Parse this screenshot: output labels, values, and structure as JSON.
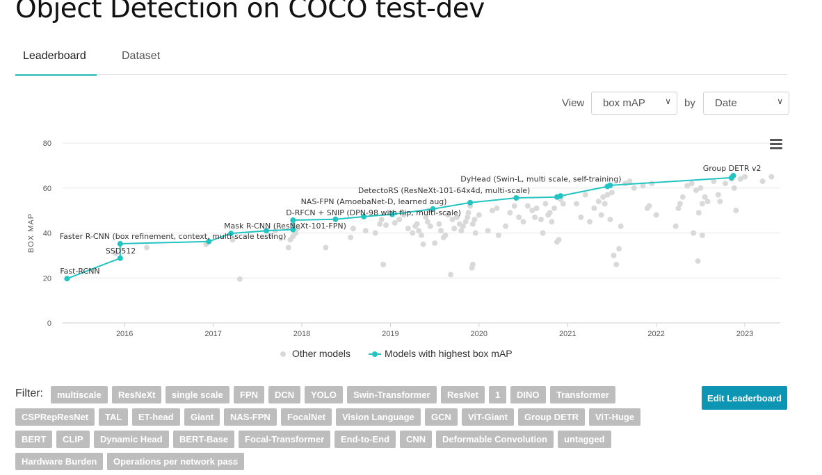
{
  "page": {
    "title": "Object Detection on COCO test-dev"
  },
  "tabs": [
    {
      "label": "Leaderboard"
    },
    {
      "label": "Dataset"
    }
  ],
  "controls": {
    "view_label": "View",
    "view_value": "box mAP",
    "by_label": "by",
    "by_value": "Date"
  },
  "chart_data": {
    "type": "scatter",
    "ylabel": "BOX MAP",
    "xlabel": "",
    "ylim": [
      0,
      80
    ],
    "xlim": [
      2015.3,
      2023.4
    ],
    "yticks": [
      0,
      20,
      40,
      60,
      80
    ],
    "xticks": [
      2016,
      2017,
      2018,
      2019,
      2020,
      2021,
      2022,
      2023
    ],
    "grid": "horizontal",
    "legend_position": "bottom",
    "colors": {
      "other": "#d9d9d9",
      "best": "#21c4c2"
    },
    "series": [
      {
        "name": "Other models",
        "points": [
          [
            2015.9,
            31
          ],
          [
            2016.25,
            33.5
          ],
          [
            2016.92,
            35
          ],
          [
            2016.95,
            36.5
          ],
          [
            2017.22,
            37
          ],
          [
            2017.3,
            19.5
          ],
          [
            2017.65,
            39
          ],
          [
            2017.7,
            41
          ],
          [
            2017.85,
            33.5
          ],
          [
            2017.87,
            37
          ],
          [
            2017.9,
            38.5
          ],
          [
            2017.93,
            40
          ],
          [
            2017.95,
            42
          ],
          [
            2017.9,
            44
          ],
          [
            2018.27,
            33.5
          ],
          [
            2018.55,
            38
          ],
          [
            2018.58,
            42
          ],
          [
            2018.72,
            41
          ],
          [
            2018.83,
            40
          ],
          [
            2018.88,
            44
          ],
          [
            2018.92,
            26
          ],
          [
            2018.9,
            46
          ],
          [
            2018.95,
            43.5
          ],
          [
            2019.05,
            44.5
          ],
          [
            2019.1,
            46
          ],
          [
            2019.15,
            48
          ],
          [
            2019.2,
            42
          ],
          [
            2019.25,
            40
          ],
          [
            2019.28,
            43
          ],
          [
            2019.3,
            44
          ],
          [
            2019.32,
            41
          ],
          [
            2019.35,
            39
          ],
          [
            2019.37,
            35
          ],
          [
            2019.4,
            47
          ],
          [
            2019.42,
            45
          ],
          [
            2019.43,
            50
          ],
          [
            2019.45,
            43
          ],
          [
            2019.5,
            35.5
          ],
          [
            2019.55,
            44
          ],
          [
            2019.57,
            41
          ],
          [
            2019.6,
            38
          ],
          [
            2019.62,
            39
          ],
          [
            2019.65,
            48
          ],
          [
            2019.68,
            21.5
          ],
          [
            2019.7,
            46
          ],
          [
            2019.72,
            42
          ],
          [
            2019.75,
            47
          ],
          [
            2019.78,
            44
          ],
          [
            2019.8,
            41
          ],
          [
            2019.82,
            43
          ],
          [
            2019.85,
            45
          ],
          [
            2019.87,
            47
          ],
          [
            2019.88,
            49
          ],
          [
            2019.9,
            52
          ],
          [
            2019.92,
            24.5
          ],
          [
            2019.93,
            26
          ],
          [
            2019.93,
            44
          ],
          [
            2019.95,
            46
          ],
          [
            2019.96,
            40
          ],
          [
            2020.0,
            48
          ],
          [
            2020.1,
            41
          ],
          [
            2020.15,
            50
          ],
          [
            2020.2,
            51
          ],
          [
            2020.22,
            39
          ],
          [
            2020.3,
            43
          ],
          [
            2020.35,
            49
          ],
          [
            2020.4,
            52
          ],
          [
            2020.45,
            47
          ],
          [
            2020.5,
            45
          ],
          [
            2020.55,
            52
          ],
          [
            2020.6,
            50
          ],
          [
            2020.63,
            47
          ],
          [
            2020.65,
            51
          ],
          [
            2020.7,
            46
          ],
          [
            2020.72,
            40
          ],
          [
            2020.75,
            53
          ],
          [
            2020.78,
            48
          ],
          [
            2020.8,
            49
          ],
          [
            2020.82,
            45
          ],
          [
            2020.85,
            51
          ],
          [
            2020.88,
            36
          ],
          [
            2020.9,
            37
          ],
          [
            2020.92,
            55
          ],
          [
            2020.95,
            53
          ],
          [
            2021.1,
            53
          ],
          [
            2021.15,
            47
          ],
          [
            2021.2,
            57
          ],
          [
            2021.25,
            45
          ],
          [
            2021.3,
            51
          ],
          [
            2021.35,
            54
          ],
          [
            2021.38,
            48
          ],
          [
            2021.4,
            56
          ],
          [
            2021.42,
            53
          ],
          [
            2021.45,
            57
          ],
          [
            2021.48,
            46
          ],
          [
            2021.5,
            58
          ],
          [
            2021.52,
            30
          ],
          [
            2021.55,
            26
          ],
          [
            2021.58,
            33
          ],
          [
            2021.6,
            43
          ],
          [
            2021.65,
            62
          ],
          [
            2021.7,
            63
          ],
          [
            2021.75,
            60
          ],
          [
            2021.85,
            61
          ],
          [
            2021.9,
            51
          ],
          [
            2021.92,
            52
          ],
          [
            2021.95,
            62
          ],
          [
            2022.0,
            48
          ],
          [
            2022.22,
            43
          ],
          [
            2022.25,
            51
          ],
          [
            2022.27,
            53
          ],
          [
            2022.3,
            56
          ],
          [
            2022.35,
            61
          ],
          [
            2022.4,
            62
          ],
          [
            2022.45,
            59
          ],
          [
            2022.48,
            49
          ],
          [
            2022.5,
            60
          ],
          [
            2022.52,
            53
          ],
          [
            2022.55,
            56
          ],
          [
            2022.58,
            54
          ],
          [
            2022.42,
            40
          ],
          [
            2022.47,
            27.5
          ],
          [
            2022.52,
            39
          ],
          [
            2022.65,
            63
          ],
          [
            2022.7,
            57
          ],
          [
            2022.72,
            54
          ],
          [
            2022.78,
            62
          ],
          [
            2022.85,
            64
          ],
          [
            2022.88,
            60
          ],
          [
            2022.9,
            50
          ],
          [
            2022.95,
            64
          ],
          [
            2023.0,
            65
          ],
          [
            2023.2,
            63
          ],
          [
            2023.3,
            65
          ]
        ]
      },
      {
        "name": "Models with highest box mAP",
        "points": [
          [
            2015.35,
            19.7
          ],
          [
            2015.95,
            28.8
          ],
          [
            2015.95,
            35.2
          ],
          [
            2016.95,
            36.2
          ],
          [
            2017.2,
            39.8
          ],
          [
            2017.6,
            41.0
          ],
          [
            2017.9,
            41.5
          ],
          [
            2017.9,
            45.7
          ],
          [
            2018.38,
            46.1
          ],
          [
            2018.7,
            47.3
          ],
          [
            2019.02,
            48.3
          ],
          [
            2019.48,
            50.7
          ],
          [
            2019.9,
            53.5
          ],
          [
            2020.42,
            55.6
          ],
          [
            2020.88,
            56.0
          ],
          [
            2020.92,
            56.5
          ],
          [
            2021.45,
            60.7
          ],
          [
            2021.48,
            61.2
          ],
          [
            2022.85,
            64.6
          ],
          [
            2022.87,
            65.5
          ]
        ]
      }
    ],
    "annotations": [
      {
        "text": "Fast-RCNN",
        "x": 2015.35,
        "y": 19.7
      },
      {
        "text": "SSD512",
        "x": 2015.95,
        "y": 28.8
      },
      {
        "text": "Faster R-CNN (box refinement, context, multi-scale testing)",
        "x": 2015.95,
        "y": 35.2
      },
      {
        "text": "Mask R-CNN (ResNeXt-101-FPN)",
        "x": 2017.2,
        "y": 39.8
      },
      {
        "text": "D-RFCN + SNIP (DPN-98 with flip, multi-scale)",
        "x": 2017.9,
        "y": 45.7
      },
      {
        "text": "NAS-FPN (AmoebaNet-D, learned aug)",
        "x": 2019.48,
        "y": 50.7
      },
      {
        "text": "DetectoRS (ResNeXt-101-64x4d, multi-scale)",
        "x": 2020.42,
        "y": 55.6
      },
      {
        "text": "DyHead (Swin-L, multi scale, self-training)",
        "x": 2021.45,
        "y": 60.7
      },
      {
        "text": "Group DETR v2",
        "x": 2022.87,
        "y": 65.5
      }
    ]
  },
  "filter": {
    "label": "Filter:",
    "tags": [
      "multiscale",
      "ResNeXt",
      "single scale",
      "FPN",
      "DCN",
      "YOLO",
      "Swin-Transformer",
      "ResNet",
      "1",
      "DINO",
      "Transformer",
      "CSPRepResNet",
      "TAL",
      "ET-head",
      "Giant",
      "NAS-FPN",
      "FocalNet",
      "Vision Language",
      "GCN",
      "ViT-Giant",
      "Group DETR",
      "ViT-Huge",
      "BERT",
      "CLIP",
      "Dynamic Head",
      "BERT-Base",
      "Focal-Transformer",
      "End-to-End",
      "CNN",
      "Deformable Convolution",
      "untagged",
      "Hardware Burden",
      "Operations per network pass"
    ]
  },
  "edit_button": {
    "label": "Edit Leaderboard"
  }
}
